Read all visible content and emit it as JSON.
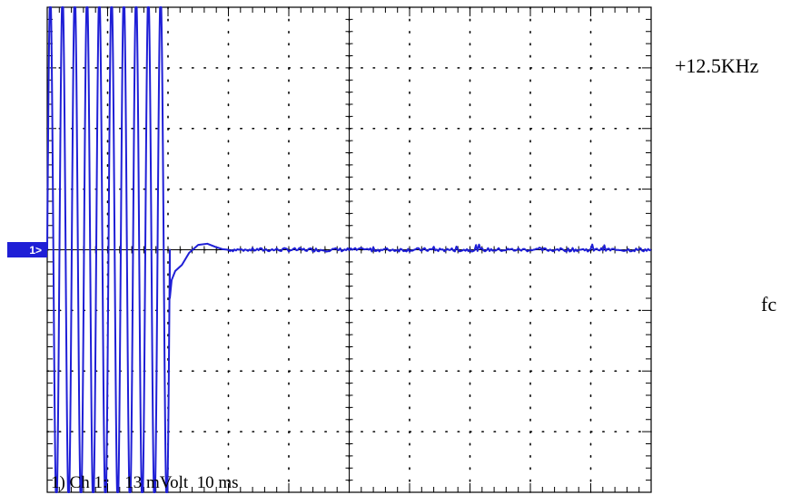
{
  "annotations": {
    "top_right": "+12.5KHz",
    "middle_right": "fc"
  },
  "colors": {
    "trace": "#1f1fd6",
    "grid": "#000000",
    "marker_bg": "#1f1fd6",
    "marker_text": "#ffffff"
  },
  "chart_data": {
    "type": "line",
    "title": "",
    "xlabel": "",
    "ylabel": "",
    "grid": true,
    "divisions": {
      "x": 10,
      "y": 8
    },
    "channel_marker": "1>",
    "readout": "1) Ch 1:    13 mVolt  10 ms",
    "volts_per_div_mV": 13,
    "time_per_div_ms": 10,
    "xlim_ms": [
      0,
      100
    ],
    "ylim_div": [
      -4,
      4
    ],
    "series": [
      {
        "segments": [
          {
            "t_start_ms": 0,
            "t_end_ms": 20.3,
            "kind": "sine",
            "cycles": 10,
            "amplitude_div": 4.2,
            "clipped_at_div": 4.0
          },
          {
            "t_start_ms": 20.3,
            "t_end_ms": 30,
            "kind": "step_response",
            "points_ms_div": [
              [
                20.3,
                -0.8
              ],
              [
                20.6,
                -0.5
              ],
              [
                21.2,
                -0.35
              ],
              [
                22.3,
                -0.25
              ],
              [
                23.5,
                -0.05
              ],
              [
                25.0,
                0.08
              ],
              [
                26.5,
                0.1
              ],
              [
                27.8,
                0.05
              ],
              [
                29.0,
                0.01
              ],
              [
                30.0,
                0.0
              ]
            ]
          },
          {
            "t_start_ms": 30,
            "t_end_ms": 100,
            "kind": "flat_noise",
            "level_div": 0.0,
            "noise_div": 0.03
          }
        ]
      }
    ]
  }
}
